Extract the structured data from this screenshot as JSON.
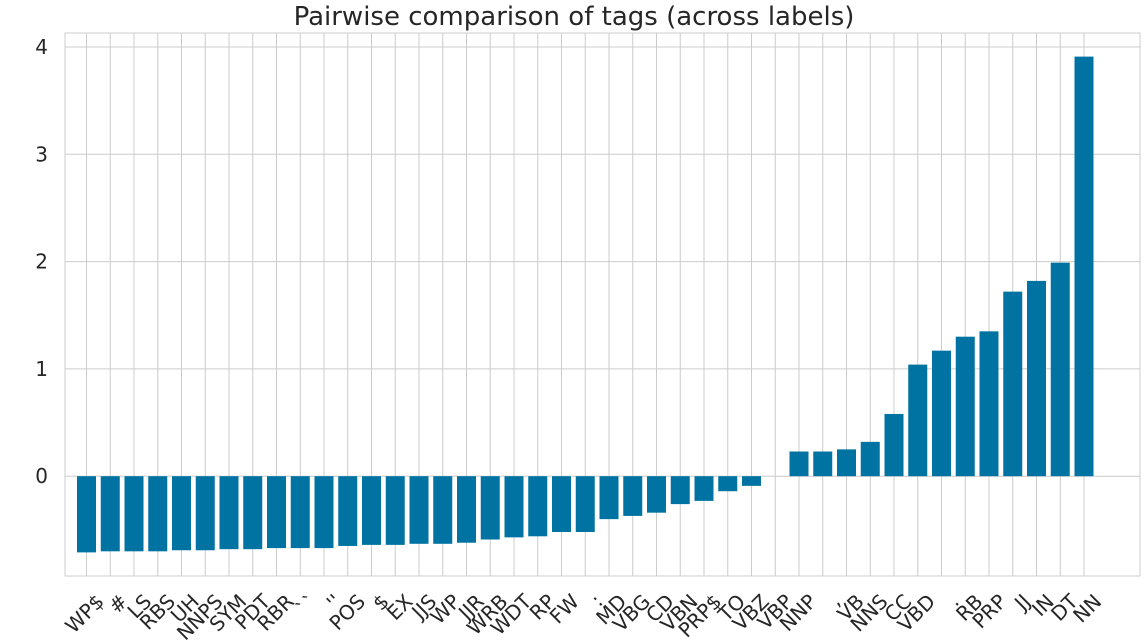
{
  "chart_data": {
    "type": "bar",
    "title": "Pairwise comparison of tags (across labels)",
    "xlabel": "",
    "ylabel": "",
    "ylim": [
      -0.93,
      4.13
    ],
    "yticks": [
      0,
      1,
      2,
      3,
      4
    ],
    "grid": true,
    "bar_color": "#0173a2",
    "categories": [
      "WP$",
      "#",
      "LS",
      "RBS",
      "UH",
      "NNPS",
      "SYM",
      "PDT",
      "RBR",
      "``",
      "''",
      "POS",
      "$",
      "EX",
      "JJS",
      "WP",
      "JJR",
      "WRB",
      "WDT",
      "RP",
      "FW",
      ":",
      "MD",
      "VBG",
      "CD",
      "VBN",
      "PRP$",
      "TO",
      "VBZ",
      "VBP",
      "NNP",
      ",",
      "VB",
      "NNS",
      "CC",
      "VBD",
      ".",
      "RB",
      "PRP",
      "JJ",
      "IN",
      "DT",
      "NN"
    ],
    "values": [
      -0.71,
      -0.7,
      -0.7,
      -0.7,
      -0.69,
      -0.69,
      -0.68,
      -0.68,
      -0.67,
      -0.67,
      -0.67,
      -0.65,
      -0.64,
      -0.64,
      -0.63,
      -0.63,
      -0.62,
      -0.59,
      -0.57,
      -0.56,
      -0.52,
      -0.52,
      -0.4,
      -0.37,
      -0.34,
      -0.26,
      -0.23,
      -0.14,
      -0.09,
      0.0,
      0.23,
      0.23,
      0.25,
      0.32,
      0.58,
      1.04,
      1.17,
      1.3,
      1.35,
      1.72,
      1.82,
      1.99,
      3.91
    ]
  }
}
